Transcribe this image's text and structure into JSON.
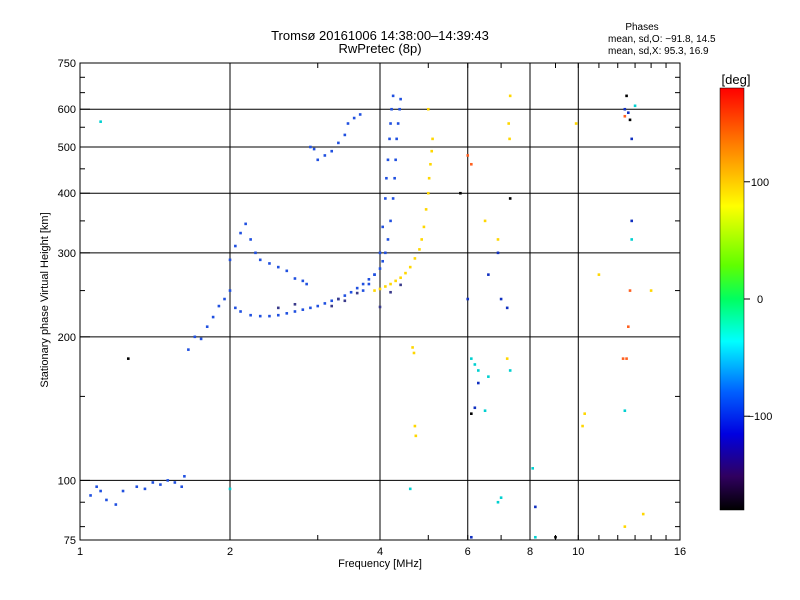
{
  "chart_data": {
    "type": "scatter",
    "title": "Tromsø 20161006 14:38:00–14:39:43",
    "subtitle": "RwPretec (8p)",
    "xlabel": "Frequency [MHz]",
    "ylabel": "Stationary phase Virtual Height [km]",
    "x_scale": "log2",
    "y_scale": "log",
    "xlim": [
      1,
      16
    ],
    "ylim": [
      75,
      750
    ],
    "x_ticks": [
      1,
      2,
      4,
      8,
      16
    ],
    "x_tick_labels": [
      "1",
      "2",
      "4",
      "6",
      "8",
      "10",
      "16"
    ],
    "x_tick_label_values": [
      1,
      2,
      4,
      6,
      8,
      10,
      16
    ],
    "y_tick_labels": [
      "75",
      "100",
      "200",
      "300",
      "400",
      "500",
      "600",
      "750"
    ],
    "y_tick_values": [
      75,
      100,
      200,
      300,
      400,
      500,
      600,
      750
    ],
    "gridlines_x": [
      2,
      4,
      6,
      8,
      10
    ],
    "gridlines_y": [
      100,
      200,
      300,
      400,
      500,
      600
    ],
    "grid": true,
    "stats_box": {
      "heading": "Phases",
      "line_o": "mean, sd,O: −91.8, 14.5",
      "line_x": "mean, sd,X:  95.3, 16.9"
    },
    "colorbar": {
      "label": "[deg]",
      "range": [
        -180,
        180
      ],
      "ticks": [
        100,
        0,
        -100
      ],
      "tick_labels": [
        "100",
        "0",
        "−100"
      ],
      "colors": [
        "#ff0000",
        "#ff8c00",
        "#ffff00",
        "#00ff00",
        "#00ffff",
        "#0000ff",
        "#1a0030",
        "#000000"
      ]
    },
    "series": [
      {
        "color": "#2050e0",
        "phase": -95,
        "points": [
          [
            1.05,
            93
          ],
          [
            1.08,
            97
          ],
          [
            1.1,
            95
          ],
          [
            1.13,
            91
          ],
          [
            1.18,
            89
          ],
          [
            1.22,
            95
          ],
          [
            1.3,
            97
          ],
          [
            1.35,
            96
          ],
          [
            1.4,
            99
          ],
          [
            1.45,
            98
          ],
          [
            1.5,
            100
          ],
          [
            1.55,
            99
          ],
          [
            1.6,
            97
          ],
          [
            1.62,
            102
          ],
          [
            1.65,
            188
          ],
          [
            1.7,
            200
          ],
          [
            1.75,
            198
          ],
          [
            1.8,
            210
          ],
          [
            1.85,
            220
          ],
          [
            1.9,
            232
          ],
          [
            1.95,
            240
          ],
          [
            2.0,
            250
          ],
          [
            2.0,
            290
          ],
          [
            2.05,
            230
          ],
          [
            2.1,
            226
          ],
          [
            2.2,
            222
          ],
          [
            2.3,
            221
          ],
          [
            2.4,
            221
          ],
          [
            2.5,
            222
          ],
          [
            2.6,
            224
          ],
          [
            2.7,
            226
          ],
          [
            2.8,
            228
          ],
          [
            2.9,
            230
          ],
          [
            3.0,
            232
          ],
          [
            3.1,
            235
          ],
          [
            3.2,
            238
          ],
          [
            3.3,
            240
          ],
          [
            3.4,
            244
          ],
          [
            3.5,
            248
          ],
          [
            3.6,
            253
          ],
          [
            3.7,
            258
          ],
          [
            3.8,
            264
          ],
          [
            3.9,
            270
          ],
          [
            4.0,
            278
          ],
          [
            4.05,
            288
          ],
          [
            4.1,
            300
          ],
          [
            4.15,
            320
          ],
          [
            4.2,
            350
          ],
          [
            4.25,
            390
          ],
          [
            4.28,
            430
          ],
          [
            4.3,
            470
          ],
          [
            4.32,
            520
          ],
          [
            4.35,
            560
          ],
          [
            4.38,
            600
          ],
          [
            4.4,
            630
          ],
          [
            2.05,
            310
          ],
          [
            2.1,
            330
          ],
          [
            2.15,
            345
          ],
          [
            2.2,
            320
          ],
          [
            2.25,
            300
          ],
          [
            2.3,
            290
          ],
          [
            2.4,
            285
          ],
          [
            2.5,
            280
          ],
          [
            2.6,
            275
          ],
          [
            2.7,
            265
          ],
          [
            2.8,
            262
          ],
          [
            2.85,
            258
          ],
          [
            3.0,
            470
          ],
          [
            3.1,
            480
          ],
          [
            3.2,
            490
          ],
          [
            3.3,
            510
          ],
          [
            3.4,
            530
          ],
          [
            3.45,
            560
          ],
          [
            3.55,
            575
          ],
          [
            3.65,
            585
          ],
          [
            2.9,
            500
          ],
          [
            2.95,
            495
          ],
          [
            3.7,
            250
          ],
          [
            3.8,
            258
          ],
          [
            3.9,
            270
          ],
          [
            4.0,
            300
          ],
          [
            4.05,
            340
          ],
          [
            4.1,
            390
          ],
          [
            4.12,
            430
          ],
          [
            4.15,
            470
          ],
          [
            4.18,
            520
          ],
          [
            4.2,
            560
          ],
          [
            4.22,
            600
          ],
          [
            4.25,
            640
          ]
        ]
      },
      {
        "color": "#3a3a8a",
        "phase": -120,
        "points": [
          [
            2.5,
            230
          ],
          [
            2.7,
            234
          ],
          [
            3.2,
            232
          ],
          [
            3.3,
            240
          ],
          [
            3.4,
            238
          ],
          [
            3.6,
            247
          ],
          [
            4.0,
            231
          ],
          [
            4.2,
            248
          ],
          [
            4.4,
            257
          ]
        ]
      },
      {
        "color": "#ffd700",
        "phase": 110,
        "points": [
          [
            3.9,
            250
          ],
          [
            4.0,
            252
          ],
          [
            4.1,
            255
          ],
          [
            4.2,
            258
          ],
          [
            4.3,
            262
          ],
          [
            4.4,
            266
          ],
          [
            4.5,
            272
          ],
          [
            4.6,
            280
          ],
          [
            4.7,
            292
          ],
          [
            4.8,
            305
          ],
          [
            4.85,
            320
          ],
          [
            4.9,
            340
          ],
          [
            4.95,
            370
          ],
          [
            5.0,
            400
          ],
          [
            5.02,
            430
          ],
          [
            5.05,
            460
          ],
          [
            5.08,
            490
          ],
          [
            5.1,
            520
          ],
          [
            4.65,
            190
          ],
          [
            4.68,
            185
          ],
          [
            4.7,
            130
          ],
          [
            4.72,
            124
          ],
          [
            5.0,
            600
          ],
          [
            6.5,
            350
          ],
          [
            6.9,
            320
          ],
          [
            7.3,
            640
          ],
          [
            7.25,
            560
          ],
          [
            7.28,
            520
          ],
          [
            7.2,
            180
          ],
          [
            9.9,
            560
          ],
          [
            10.2,
            130
          ],
          [
            10.3,
            138
          ],
          [
            11,
            270
          ],
          [
            13.5,
            85
          ],
          [
            14,
            250
          ],
          [
            12.4,
            80
          ]
        ]
      },
      {
        "color": "#ff6020",
        "phase": 150,
        "points": [
          [
            6.0,
            480
          ],
          [
            6.1,
            460
          ],
          [
            12.4,
            580
          ],
          [
            12.3,
            180
          ],
          [
            12.5,
            180
          ],
          [
            12.6,
            210
          ],
          [
            12.7,
            250
          ]
        ]
      },
      {
        "color": "#00d0d0",
        "phase": -20,
        "points": [
          [
            1.1,
            565
          ],
          [
            2.0,
            96
          ],
          [
            4.6,
            96
          ],
          [
            6.1,
            180
          ],
          [
            6.2,
            175
          ],
          [
            6.3,
            170
          ],
          [
            6.5,
            140
          ],
          [
            6.6,
            165
          ],
          [
            6.9,
            90
          ],
          [
            7.0,
            92
          ],
          [
            7.3,
            170
          ],
          [
            8.1,
            106
          ],
          [
            8.2,
            76
          ],
          [
            12.4,
            140
          ],
          [
            12.8,
            320
          ],
          [
            13.0,
            610
          ]
        ]
      },
      {
        "color": "#1030c0",
        "phase": -105,
        "points": [
          [
            6.0,
            240
          ],
          [
            6.1,
            76
          ],
          [
            6.2,
            142
          ],
          [
            6.3,
            160
          ],
          [
            6.6,
            270
          ],
          [
            6.9,
            300
          ],
          [
            7.0,
            240
          ],
          [
            7.2,
            230
          ],
          [
            8.2,
            88
          ],
          [
            12.4,
            600
          ],
          [
            12.6,
            590
          ],
          [
            12.8,
            350
          ],
          [
            12.8,
            520
          ]
        ]
      },
      {
        "color": "#000000",
        "phase": -170,
        "points": [
          [
            1.25,
            180
          ],
          [
            5.8,
            400
          ],
          [
            6.1,
            138
          ],
          [
            7.3,
            390
          ],
          [
            9.0,
            76
          ],
          [
            12.5,
            640
          ],
          [
            12.7,
            570
          ]
        ]
      }
    ]
  }
}
